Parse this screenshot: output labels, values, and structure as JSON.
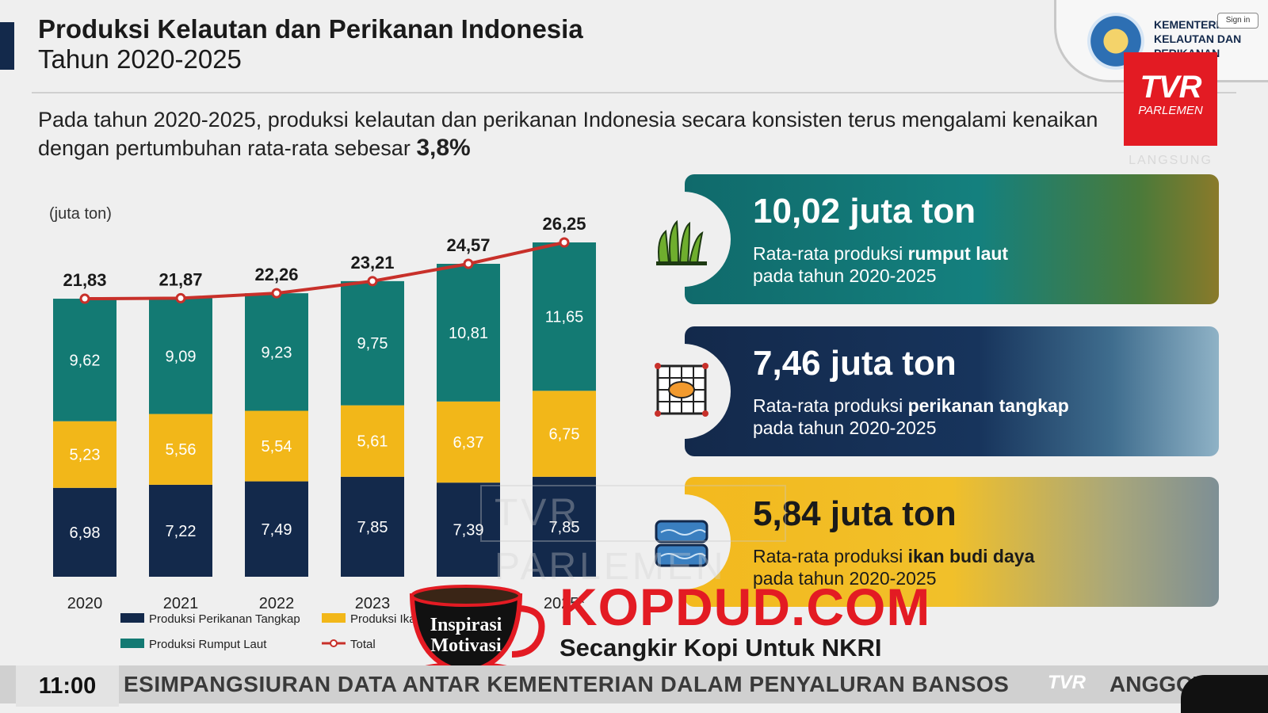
{
  "header": {
    "title_line1": "Produksi Kelautan dan Perikanan Indonesia",
    "title_line2": "Tahun 2020-2025",
    "ministry": "KEMENTERIAN KELAUTAN DAN PERIKANAN",
    "sign_in": "Sign in"
  },
  "intro": {
    "text": "Pada tahun 2020-2025, produksi kelautan dan perikanan Indonesia secara konsisten terus mengalami kenaikan dengan pertumbuhan rata-rata sebesar",
    "highlight": "3,8%"
  },
  "broadcast": {
    "logo_big": "TVR",
    "logo_small": "PARLEMEN",
    "langsung": "LANGSUNG",
    "clock": "11:00",
    "ticker": "ESIMPANGSIURAN DATA ANTAR KEMENTERIAN DALAM PENYALURAN BANSOS",
    "ticker_logo": "TVR",
    "ticker_next": "ANGGOTA KO"
  },
  "watermark": {
    "site": "KOPDUD.COM",
    "tagline": "Secangkir Kopi Untuk NKRI",
    "cup_line1": "Inspirasi",
    "cup_line2": "Motivasi"
  },
  "colors": {
    "navy": "#13294b",
    "yellow": "#f2b719",
    "teal": "#137a73",
    "red_line": "#c8302a"
  },
  "chart_data": {
    "type": "bar",
    "stacked": true,
    "unit_label": "(juta ton)",
    "categories": [
      "2020",
      "2021",
      "2022",
      "2023",
      "2024",
      "2025*"
    ],
    "series": [
      {
        "name": "Produksi Perikanan Tangkap",
        "values": [
          6.98,
          7.22,
          7.49,
          7.85,
          7.39,
          7.85
        ],
        "labels": [
          "6,98",
          "7,22",
          "7,49",
          "7,85",
          "7,39",
          "7,85"
        ],
        "color": "#13294b"
      },
      {
        "name": "Produksi Ikan Budi Daya",
        "values": [
          5.23,
          5.56,
          5.54,
          5.61,
          6.37,
          6.75
        ],
        "labels": [
          "5,23",
          "5,56",
          "5,54",
          "5,61",
          "6,37",
          "6,75"
        ],
        "color": "#f2b719"
      },
      {
        "name": "Produksi Rumput Laut",
        "values": [
          9.62,
          9.09,
          9.23,
          9.75,
          10.81,
          11.65
        ],
        "labels": [
          "9,62",
          "9,09",
          "9,23",
          "9,75",
          "10,81",
          "11,65"
        ],
        "color": "#137a73"
      }
    ],
    "total": {
      "name": "Total",
      "values": [
        21.83,
        21.87,
        22.26,
        23.21,
        24.57,
        26.25
      ],
      "labels": [
        "21,83",
        "21,87",
        "22,26",
        "23,21",
        "24,57",
        "26,25"
      ],
      "color": "#c8302a"
    },
    "legend_position": "bottom",
    "ylim": [
      0,
      26.25
    ]
  },
  "cards": [
    {
      "value": "10,02 juta ton",
      "desc_pre": "Rata-rata produksi ",
      "desc_bold": "rumput laut",
      "desc_line2": "pada tahun 2020-2025",
      "icon": "seaweed-icon"
    },
    {
      "value": "7,46 juta ton",
      "desc_pre": "Rata-rata produksi ",
      "desc_bold": "perikanan tangkap",
      "desc_line2": "pada tahun 2020-2025",
      "icon": "fishing-net-icon"
    },
    {
      "value": "5,84 juta ton",
      "desc_pre": "Rata-rata produksi ",
      "desc_bold": "ikan budi daya",
      "desc_line2": "pada tahun 2020-2025",
      "icon": "aquaculture-pond-icon"
    }
  ]
}
